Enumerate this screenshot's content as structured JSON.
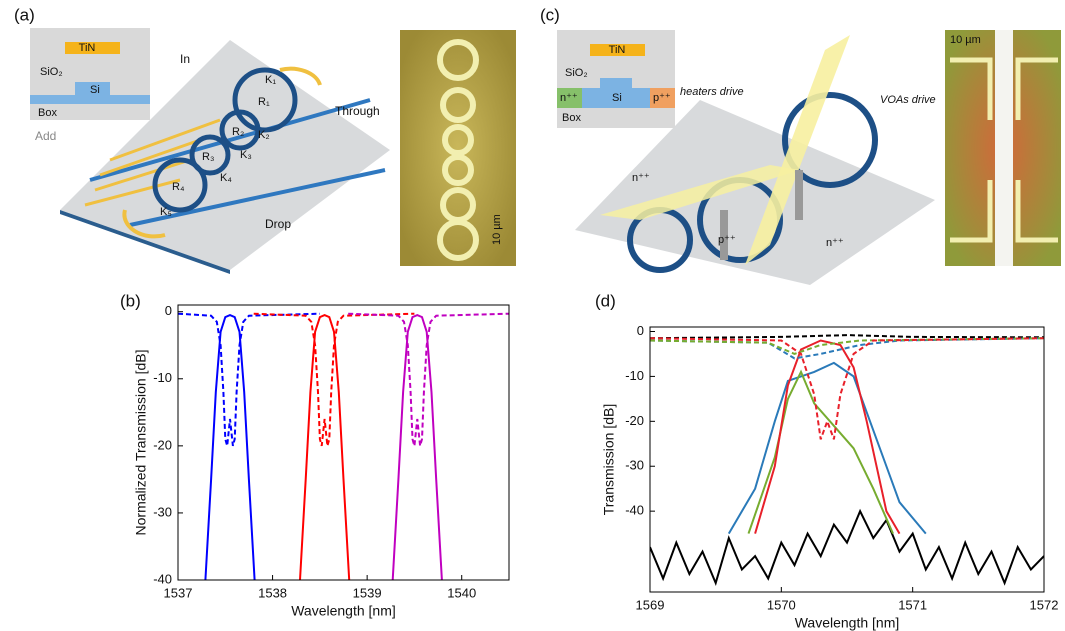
{
  "panels": {
    "a": {
      "label": "(a)",
      "inset": [
        "TiN",
        "SiO₂",
        "Si",
        "Box"
      ],
      "ports": [
        "In",
        "Through",
        "Add",
        "Drop"
      ],
      "couplers": [
        "K₁",
        "K₂",
        "K₃",
        "K₄",
        "K₅"
      ],
      "rings": [
        "R₁",
        "R₂",
        "R₃",
        "R₄"
      ],
      "scale": "10 µm"
    },
    "c": {
      "label": "(c)",
      "inset": [
        "TiN",
        "SiO₂",
        "n⁺⁺",
        "Si",
        "p⁺⁺",
        "Box"
      ],
      "notes": [
        "heaters drive",
        "VOAs drive",
        "n⁺⁺",
        "p⁺⁺",
        "n⁺⁺"
      ],
      "scale": "10 µm"
    }
  },
  "chart_data": [
    {
      "type": "line",
      "label": "(b)",
      "x_label": "Wavelength [nm]",
      "y_label": "Normalized Transmission [dB]",
      "xlim": [
        1537,
        1540.5
      ],
      "xticks": [
        1537,
        1538,
        1539,
        1540
      ],
      "ylim": [
        -40,
        1
      ],
      "yticks": [
        0,
        -10,
        -20,
        -30,
        -40
      ],
      "series": [
        {
          "color": "#0000ff",
          "dash": false,
          "x": [
            1537.29,
            1537.35,
            1537.4,
            1537.45,
            1537.5,
            1537.55,
            1537.6,
            1537.65,
            1537.7,
            1537.75,
            1537.81
          ],
          "values": [
            -40,
            -25,
            -12,
            -3,
            -0.8,
            -0.5,
            -0.8,
            -3,
            -12,
            -25,
            -40
          ]
        },
        {
          "color": "#0000ff",
          "dash": true,
          "x": [
            1537.0,
            1537.35,
            1537.41,
            1537.45,
            1537.48,
            1537.5,
            1537.52,
            1537.55,
            1537.58,
            1537.6,
            1537.62,
            1537.65,
            1537.69,
            1537.75,
            1538.5
          ],
          "values": [
            -0.3,
            -0.6,
            -1.5,
            -5,
            -12,
            -19,
            -20,
            -16,
            -20,
            -19,
            -12,
            -5,
            -1.5,
            -0.6,
            -0.3
          ]
        },
        {
          "color": "#ff0000",
          "dash": false,
          "x": [
            1538.29,
            1538.35,
            1538.4,
            1538.45,
            1538.5,
            1538.55,
            1538.6,
            1538.65,
            1538.7,
            1538.75,
            1538.81
          ],
          "values": [
            -40,
            -25,
            -12,
            -3,
            -0.8,
            -0.5,
            -0.8,
            -3,
            -12,
            -25,
            -40
          ]
        },
        {
          "color": "#ff0000",
          "dash": true,
          "x": [
            1537.8,
            1538.35,
            1538.41,
            1538.45,
            1538.48,
            1538.5,
            1538.52,
            1538.55,
            1538.58,
            1538.6,
            1538.62,
            1538.65,
            1538.69,
            1538.75,
            1539.5
          ],
          "values": [
            -0.3,
            -0.6,
            -1.5,
            -5,
            -12,
            -19,
            -20,
            -16,
            -20,
            -19,
            -12,
            -5,
            -1.5,
            -0.6,
            -0.3
          ]
        },
        {
          "color": "#c000c0",
          "dash": false,
          "x": [
            1539.27,
            1539.33,
            1539.38,
            1539.43,
            1539.48,
            1539.53,
            1539.58,
            1539.63,
            1539.68,
            1539.73,
            1539.79
          ],
          "values": [
            -40,
            -25,
            -12,
            -3,
            -0.8,
            -0.5,
            -0.8,
            -3,
            -12,
            -25,
            -40
          ]
        },
        {
          "color": "#c000c0",
          "dash": true,
          "x": [
            1538.8,
            1539.33,
            1539.39,
            1539.43,
            1539.46,
            1539.48,
            1539.5,
            1539.53,
            1539.56,
            1539.58,
            1539.6,
            1539.63,
            1539.67,
            1539.73,
            1540.5
          ],
          "values": [
            -0.3,
            -0.6,
            -1.5,
            -5,
            -12,
            -19,
            -20,
            -16,
            -20,
            -19,
            -12,
            -5,
            -1.5,
            -0.6,
            -0.3
          ]
        }
      ]
    },
    {
      "type": "line",
      "label": "(d)",
      "x_label": "Wavelength [nm]",
      "y_label": "Transmission [dB]",
      "xlim": [
        1569,
        1572
      ],
      "xticks": [
        1569,
        1570,
        1571,
        1572
      ],
      "ylim": [
        -58,
        1
      ],
      "yticks": [
        0,
        -10,
        -20,
        -30,
        -40
      ],
      "series": [
        {
          "color": "#000000",
          "dash": false,
          "x": [
            1569.0,
            1569.1,
            1569.2,
            1569.3,
            1569.4,
            1569.5,
            1569.6,
            1569.7,
            1569.8,
            1569.9,
            1570.0,
            1570.1,
            1570.2,
            1570.3,
            1570.4,
            1570.5,
            1570.6,
            1570.7,
            1570.8,
            1570.9,
            1571.0,
            1571.1,
            1571.2,
            1571.3,
            1571.4,
            1571.5,
            1571.6,
            1571.7,
            1571.8,
            1571.9,
            1572.0
          ],
          "values": [
            -48,
            -55,
            -47,
            -54,
            -49,
            -56,
            -46,
            -53,
            -50,
            -55,
            -47,
            -52,
            -45,
            -50,
            -43,
            -47,
            -40,
            -46,
            -42,
            -49,
            -45,
            -53,
            -48,
            -55,
            -47,
            -54,
            -49,
            -56,
            -48,
            -53,
            -50
          ]
        },
        {
          "color": "#2a7ab9",
          "dash": false,
          "x": [
            1569.6,
            1569.8,
            1569.95,
            1570.05,
            1570.15,
            1570.25,
            1570.4,
            1570.55,
            1570.7,
            1570.9,
            1571.1
          ],
          "values": [
            -45,
            -35,
            -20,
            -11,
            -10,
            -9,
            -7,
            -10,
            -22,
            -38,
            -45
          ]
        },
        {
          "color": "#77ac30",
          "dash": false,
          "x": [
            1569.75,
            1569.95,
            1570.05,
            1570.15,
            1570.25,
            1570.4,
            1570.55,
            1570.7,
            1570.85
          ],
          "values": [
            -45,
            -28,
            -15,
            -9,
            -16,
            -21,
            -26,
            -35,
            -45
          ]
        },
        {
          "color": "#e8202a",
          "dash": false,
          "x": [
            1569.8,
            1569.95,
            1570.05,
            1570.15,
            1570.3,
            1570.45,
            1570.55,
            1570.65,
            1570.8,
            1570.9
          ],
          "values": [
            -45,
            -30,
            -12,
            -4,
            -2,
            -3,
            -8,
            -20,
            -40,
            -45
          ]
        },
        {
          "color": "#000000",
          "dash": true,
          "x": [
            1569,
            1570,
            1570.5,
            1571,
            1572
          ],
          "values": [
            -1.5,
            -1.2,
            -0.8,
            -1.2,
            -1.3
          ]
        },
        {
          "color": "#2a7ab9",
          "dash": true,
          "x": [
            1569,
            1569.9,
            1570.1,
            1570.3,
            1570.6,
            1570.9,
            1572
          ],
          "values": [
            -2,
            -2.5,
            -6,
            -5,
            -3,
            -2,
            -1.5
          ]
        },
        {
          "color": "#77ac30",
          "dash": true,
          "x": [
            1569,
            1569.9,
            1570.1,
            1570.3,
            1570.6,
            1572
          ],
          "values": [
            -2,
            -2.5,
            -5,
            -3,
            -2,
            -1.5
          ]
        },
        {
          "color": "#e8202a",
          "dash": true,
          "x": [
            1569,
            1570,
            1570.15,
            1570.25,
            1570.3,
            1570.35,
            1570.4,
            1570.45,
            1570.55,
            1570.7,
            1572
          ],
          "values": [
            -1.5,
            -2,
            -5,
            -14,
            -24,
            -20,
            -24,
            -14,
            -5,
            -2,
            -1.5
          ]
        }
      ]
    }
  ]
}
